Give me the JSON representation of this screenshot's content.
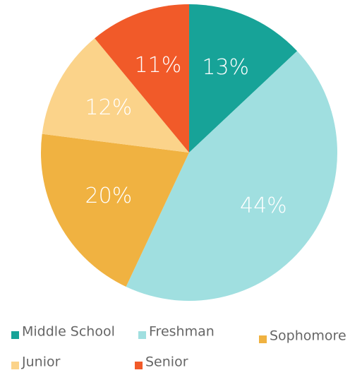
{
  "chart_data": {
    "type": "pie",
    "categories": [
      "Middle School",
      "Freshman",
      "Sophomore",
      "Junior",
      "Senior"
    ],
    "values": [
      13,
      44,
      20,
      12,
      11
    ],
    "value_labels": [
      "13%",
      "44%",
      "20%",
      "12%",
      "11%"
    ],
    "colors": [
      "#17a398",
      "#a0dfe0",
      "#f0b241",
      "#fbd38a",
      "#f15a29"
    ],
    "legend": "bottom"
  }
}
